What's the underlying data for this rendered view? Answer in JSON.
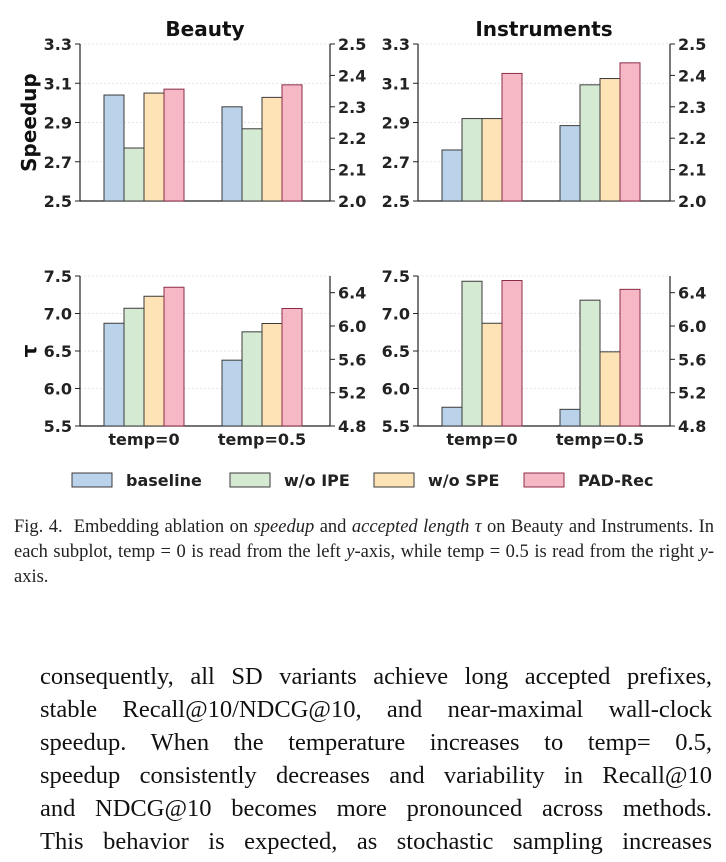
{
  "chart_data": {
    "type": "bar",
    "categories": [
      "temp=0",
      "temp=0.5"
    ],
    "series_names": [
      "baseline",
      "w/o IPE",
      "w/o SPE",
      "PAD-Rec"
    ],
    "colors": {
      "baseline": "#bad3ea",
      "w/o IPE": "#d5ead3",
      "w/o SPE": "#fde3b6",
      "PAD-Rec": "#f7b8c5"
    },
    "edge_colors": {
      "baseline": "#3b3b3b",
      "w/o IPE": "#3b3b3b",
      "w/o SPE": "#3b3b3b",
      "PAD-Rec": "#8b2c47"
    },
    "legend_placement": "bottom",
    "grid": true,
    "row_labels": [
      "Speedup",
      "τ"
    ],
    "panels": [
      {
        "row": 0,
        "col": 0,
        "title": "Beauty",
        "left_axis": {
          "range": [
            2.5,
            3.3
          ],
          "ticks": [
            "2.5",
            "2.7",
            "2.9",
            "3.1",
            "3.3"
          ]
        },
        "right_axis": {
          "range": [
            2.0,
            2.5
          ],
          "ticks": [
            "2.0",
            "2.1",
            "2.2",
            "2.3",
            "2.4",
            "2.5"
          ]
        },
        "values": {
          "temp=0": [
            3.04,
            2.77,
            3.05,
            3.07
          ],
          "temp=0.5": [
            2.3,
            2.23,
            2.33,
            2.37
          ]
        },
        "show_xticks": false
      },
      {
        "row": 0,
        "col": 1,
        "title": "Instruments",
        "left_axis": {
          "range": [
            2.5,
            3.3
          ],
          "ticks": [
            "2.5",
            "2.7",
            "2.9",
            "3.1",
            "3.3"
          ]
        },
        "right_axis": {
          "range": [
            2.0,
            2.5
          ],
          "ticks": [
            "2.0",
            "2.1",
            "2.2",
            "2.3",
            "2.4",
            "2.5"
          ]
        },
        "values": {
          "temp=0": [
            2.76,
            2.92,
            2.92,
            3.15
          ],
          "temp=0.5": [
            2.24,
            2.37,
            2.39,
            2.44
          ]
        },
        "show_xticks": false
      },
      {
        "row": 1,
        "col": 0,
        "title": "",
        "left_axis": {
          "range": [
            5.5,
            7.5
          ],
          "ticks": [
            "5.5",
            "6.0",
            "6.5",
            "7.0",
            "7.5"
          ]
        },
        "right_axis": {
          "range": [
            4.8,
            6.6
          ],
          "ticks": [
            "4.8",
            "5.2",
            "5.6",
            "6.0",
            "6.4"
          ]
        },
        "values": {
          "temp=0": [
            6.87,
            7.07,
            7.23,
            7.35
          ],
          "temp=0.5": [
            5.59,
            5.93,
            6.03,
            6.21
          ]
        },
        "show_xticks": true
      },
      {
        "row": 1,
        "col": 1,
        "title": "",
        "left_axis": {
          "range": [
            5.5,
            7.5
          ],
          "ticks": [
            "5.5",
            "6.0",
            "6.5",
            "7.0",
            "7.5"
          ]
        },
        "right_axis": {
          "range": [
            4.8,
            6.6
          ],
          "ticks": [
            "4.8",
            "5.2",
            "5.6",
            "6.0",
            "6.4"
          ]
        },
        "values": {
          "temp=0": [
            5.75,
            7.43,
            6.87,
            7.44
          ],
          "temp=0.5": [
            5.0,
            6.31,
            5.69,
            6.44
          ]
        },
        "show_xticks": true
      }
    ]
  },
  "caption": {
    "label": "Fig. 4.",
    "t1": "Embedding ablation on ",
    "e1": "speedup",
    "t2": " and ",
    "e2": "accepted length τ",
    "t3": " on Beauty and Instruments. In each subplot, temp = 0 is read from the left ",
    "e3": "y",
    "t4": "-axis, while temp = 0.5 is read from the right ",
    "e4": "y",
    "t5": "-axis."
  },
  "body_lines": [
    "consequently, all SD variants achieve long accepted prefixes,",
    "stable Recall@10/NDCG@10, and near-maximal wall-clock",
    "speedup. When the temperature increases to temp= 0.5,",
    "speedup consistently decreases and variability in Recall@10",
    "and NDCG@10 becomes more pronounced across methods.",
    "This behavior is expected, as stochastic sampling increases"
  ]
}
